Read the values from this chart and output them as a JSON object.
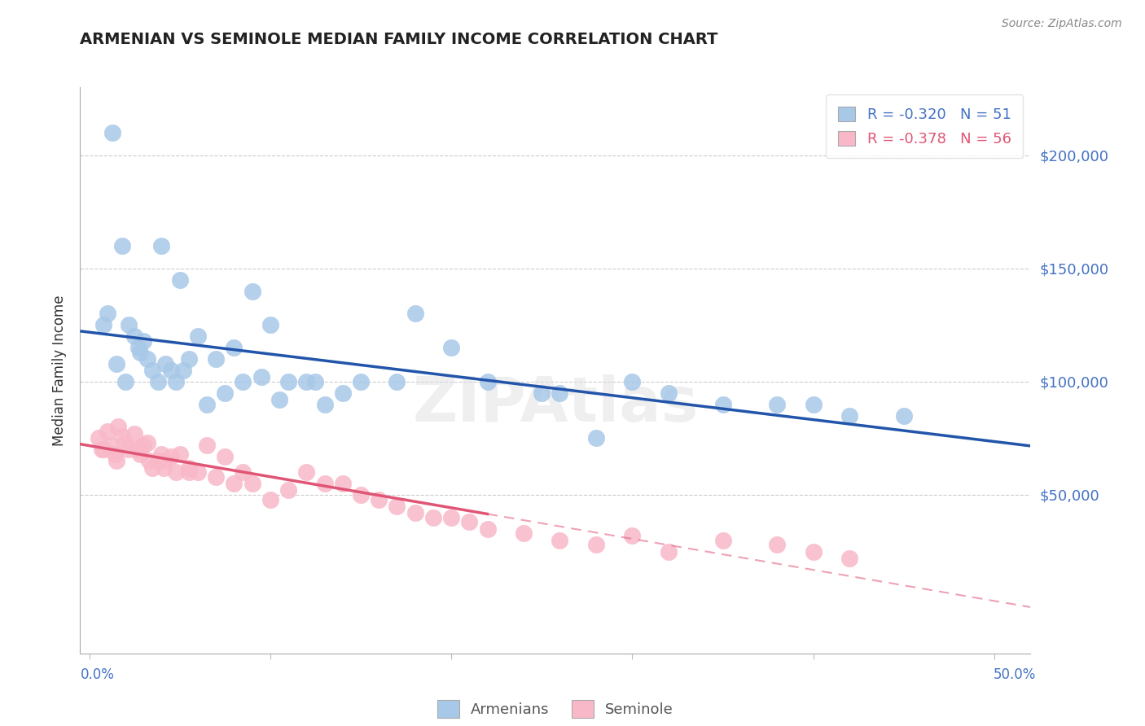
{
  "title": "ARMENIAN VS SEMINOLE MEDIAN FAMILY INCOME CORRELATION CHART",
  "source": "Source: ZipAtlas.com",
  "ylabel": "Median Family Income",
  "ytick_values": [
    50000,
    100000,
    150000,
    200000
  ],
  "ylim": [
    -20000,
    230000
  ],
  "xlim": [
    -0.005,
    0.52
  ],
  "blue_r": "-0.320",
  "blue_n": "51",
  "pink_r": "-0.378",
  "pink_n": "56",
  "blue_fill": "#a8c8e8",
  "pink_fill": "#f8b8c8",
  "blue_line": "#2255aa",
  "pink_line": "#e05575",
  "armenian_x": [
    0.01,
    0.013,
    0.018,
    0.022,
    0.025,
    0.027,
    0.028,
    0.03,
    0.032,
    0.035,
    0.04,
    0.042,
    0.045,
    0.048,
    0.05,
    0.055,
    0.06,
    0.065,
    0.07,
    0.08,
    0.085,
    0.09,
    0.095,
    0.1,
    0.11,
    0.12,
    0.13,
    0.14,
    0.15,
    0.18,
    0.2,
    0.22,
    0.25,
    0.28,
    0.3,
    0.32,
    0.35,
    0.38,
    0.4,
    0.42,
    0.008,
    0.015,
    0.02,
    0.038,
    0.052,
    0.075,
    0.105,
    0.125,
    0.17,
    0.26,
    0.45
  ],
  "armenian_y": [
    130000,
    210000,
    160000,
    125000,
    120000,
    115000,
    113000,
    118000,
    110000,
    105000,
    160000,
    108000,
    105000,
    100000,
    145000,
    110000,
    120000,
    90000,
    110000,
    115000,
    100000,
    140000,
    102000,
    125000,
    100000,
    100000,
    90000,
    95000,
    100000,
    130000,
    115000,
    100000,
    95000,
    75000,
    100000,
    95000,
    90000,
    90000,
    90000,
    85000,
    125000,
    108000,
    100000,
    100000,
    105000,
    95000,
    92000,
    100000,
    100000,
    95000,
    85000
  ],
  "seminole_x": [
    0.005,
    0.008,
    0.01,
    0.012,
    0.014,
    0.016,
    0.018,
    0.02,
    0.022,
    0.025,
    0.028,
    0.03,
    0.032,
    0.035,
    0.038,
    0.04,
    0.042,
    0.045,
    0.048,
    0.05,
    0.055,
    0.06,
    0.065,
    0.07,
    0.075,
    0.08,
    0.085,
    0.09,
    0.1,
    0.11,
    0.12,
    0.13,
    0.14,
    0.15,
    0.16,
    0.17,
    0.18,
    0.19,
    0.2,
    0.21,
    0.22,
    0.24,
    0.26,
    0.28,
    0.3,
    0.32,
    0.35,
    0.38,
    0.4,
    0.42,
    0.007,
    0.015,
    0.027,
    0.033,
    0.041,
    0.055
  ],
  "seminole_y": [
    75000,
    70000,
    78000,
    72000,
    68000,
    80000,
    76000,
    73000,
    70000,
    77000,
    68000,
    72000,
    73000,
    62000,
    65000,
    68000,
    65000,
    67000,
    60000,
    68000,
    62000,
    60000,
    72000,
    58000,
    67000,
    55000,
    60000,
    55000,
    48000,
    52000,
    60000,
    55000,
    55000,
    50000,
    48000,
    45000,
    42000,
    40000,
    40000,
    38000,
    35000,
    33000,
    30000,
    28000,
    32000,
    25000,
    30000,
    28000,
    25000,
    22000,
    70000,
    65000,
    70000,
    65000,
    62000,
    60000
  ]
}
